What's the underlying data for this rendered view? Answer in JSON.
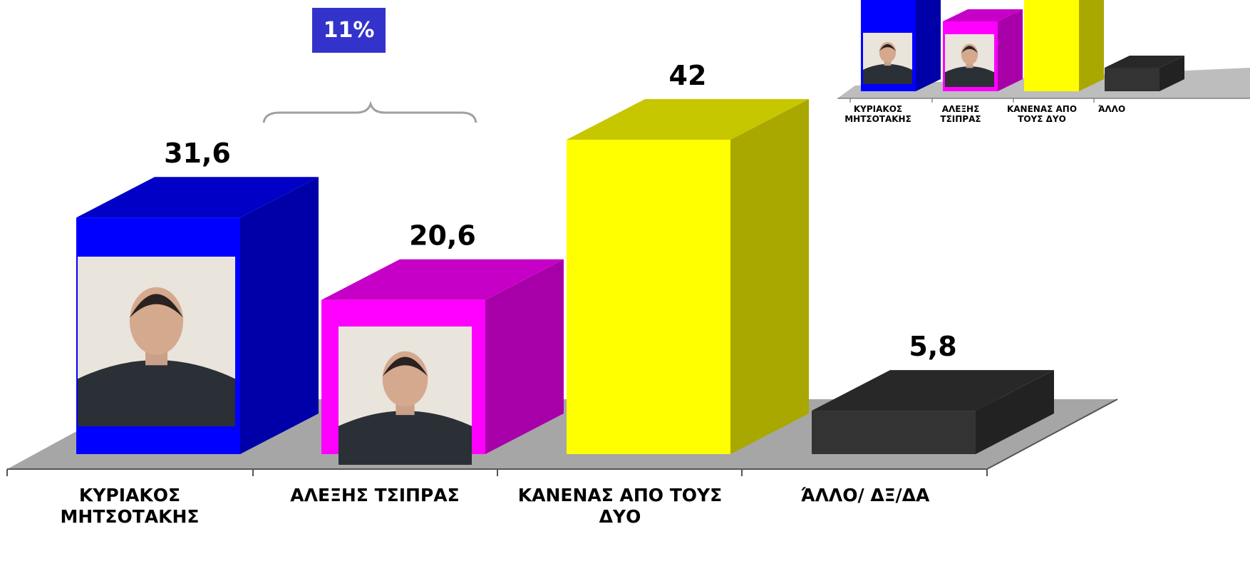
{
  "chart_data": [
    {
      "type": "bar",
      "categories": [
        "ΚΥΡΙΑΚΟΣ ΜΗΤΣΟΤΑΚΗΣ",
        "ΑΛΕΞΗΣ ΤΣΙΠΡΑΣ",
        "ΚΑΝΕΝΑΣ ΑΠΟ ΤΟΥΣ ΔΥΟ",
        "ΆΛΛΟ/ ΔΞ/ΔΑ"
      ],
      "values": [
        31.6,
        20.6,
        42,
        5.8
      ],
      "value_labels": [
        "31,6",
        "20,6",
        "42",
        "5,8"
      ],
      "colors": [
        "#0000ff",
        "#ff00ff",
        "#ffff00",
        "#333333"
      ],
      "annotation": "11%"
    },
    {
      "type": "bar",
      "categories": [
        "ΚΥΡΙΑΚΟΣ ΜΗΤΣΟΤΑΚΗΣ",
        "ΑΛΕΞΗΣ ΤΣΙΠΡΑΣ",
        "ΚΑΝΕΝΑΣ ΑΠΟ ΤΟΥΣ ΔΥΟ",
        "ΆΛΛΟ"
      ],
      "colors": [
        "#0000ff",
        "#ff00ff",
        "#ffff00",
        "#333333"
      ]
    }
  ]
}
